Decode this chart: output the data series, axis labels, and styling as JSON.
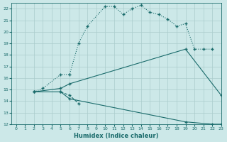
{
  "xlabel": "Humidex (Indice chaleur)",
  "xlim": [
    -0.5,
    23
  ],
  "ylim": [
    12,
    22.5
  ],
  "bg_color": "#cce8e8",
  "grid_color": "#aacccc",
  "line_color": "#1a6b6b",
  "line1_x": [
    2,
    3,
    5,
    6,
    7,
    8,
    10,
    11,
    12,
    13,
    14,
    15,
    16,
    17,
    18,
    19,
    20,
    21,
    22
  ],
  "line1_y": [
    14.8,
    15.1,
    16.3,
    16.3,
    19.0,
    20.5,
    22.2,
    22.2,
    21.5,
    22.0,
    22.3,
    21.7,
    21.5,
    21.1,
    20.5,
    20.7,
    18.5,
    18.5,
    18.5
  ],
  "line2_x": [
    2,
    5,
    6,
    19,
    23
  ],
  "line2_y": [
    14.8,
    15.1,
    15.5,
    18.5,
    14.5
  ],
  "line3_x": [
    2,
    5,
    6,
    19,
    22,
    23
  ],
  "line3_y": [
    14.8,
    14.8,
    14.2,
    12.2,
    12.0,
    12.0
  ],
  "line4_x": [
    5,
    6,
    7
  ],
  "line4_y": [
    14.8,
    14.5,
    13.8
  ],
  "yticks": [
    12,
    13,
    14,
    15,
    16,
    17,
    18,
    19,
    20,
    21,
    22
  ],
  "xticks": [
    0,
    1,
    2,
    3,
    4,
    5,
    6,
    7,
    8,
    9,
    10,
    11,
    12,
    13,
    14,
    15,
    16,
    17,
    18,
    19,
    20,
    21,
    22,
    23
  ]
}
